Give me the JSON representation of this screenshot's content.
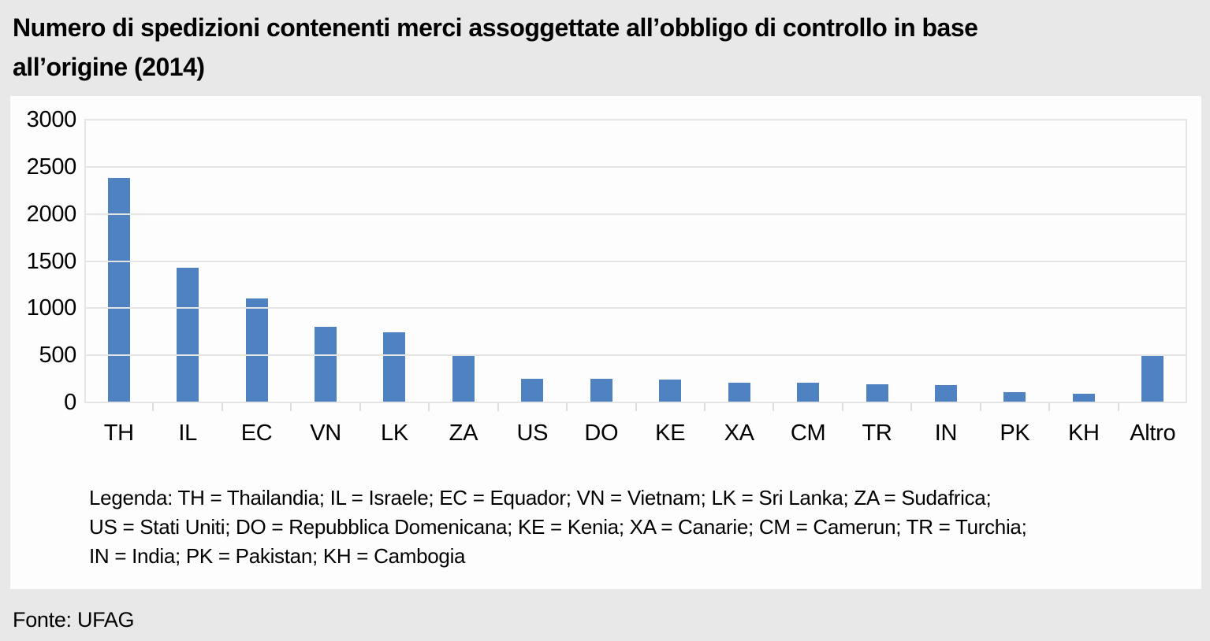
{
  "page": {
    "background": "#e8e8e8",
    "panel_background": "#fdfdfd"
  },
  "title": {
    "lines": [
      "Numero di spedizioni contenenti merci assoggettate all’obbligo di controllo in base",
      "all’origine (2014)"
    ]
  },
  "chart_data": {
    "type": "bar",
    "title": "Numero di spedizioni contenenti merci assoggettate all’obbligo di controllo in base all’origine (2014)",
    "categories": [
      "TH",
      "IL",
      "EC",
      "VN",
      "LK",
      "ZA",
      "US",
      "DO",
      "KE",
      "XA",
      "CM",
      "TR",
      "IN",
      "PK",
      "KH",
      "Altro"
    ],
    "values": [
      2380,
      1430,
      1100,
      800,
      740,
      505,
      255,
      250,
      245,
      210,
      205,
      190,
      185,
      105,
      90,
      505
    ],
    "ylim": [
      0,
      3000
    ],
    "yticks": [
      0,
      500,
      1000,
      1500,
      2000,
      2500,
      3000
    ],
    "xlabel": "",
    "ylabel": "",
    "grid": true,
    "legend_position": "below-chart-text",
    "bar_color": "#4e82c0",
    "gridline_color": "#e5e5e5"
  },
  "legend": {
    "lines": [
      "Legenda: TH = Thailandia; IL = Israele; EC = Equador; VN = Vietnam; LK = Sri Lanka; ZA = Sudafrica;",
      "US = Stati Uniti;  DO = Repubblica Domenicana; KE = Kenia; XA = Canarie; CM = Camerun; TR = Turchia;",
      "IN = India; PK = Pakistan; KH = Cambogia"
    ]
  },
  "source": {
    "label": "Fonte: UFAG"
  }
}
